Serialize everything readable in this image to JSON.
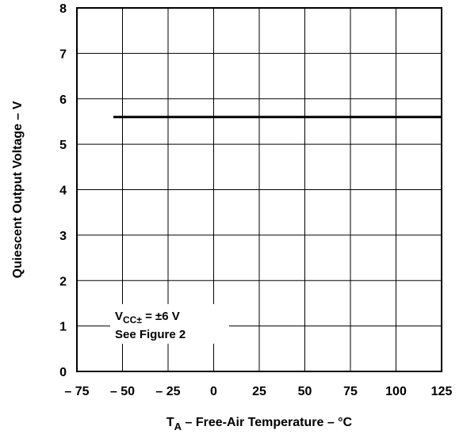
{
  "chart_data": {
    "type": "line",
    "title": "",
    "xlabel": {
      "sym": "T",
      "sub": "A",
      "rest": " – Free-Air Temperature – °C"
    },
    "ylabel": "Quiescent Output Voltage – V",
    "xlim": [
      -75,
      125
    ],
    "ylim": [
      0,
      8
    ],
    "x_ticks": [
      -75,
      -50,
      -25,
      0,
      25,
      50,
      75,
      100,
      125
    ],
    "x_tick_labels": [
      "– 75",
      "– 50",
      "– 25",
      "0",
      "25",
      "50",
      "75",
      "100",
      "125"
    ],
    "y_ticks": [
      0,
      1,
      2,
      3,
      4,
      5,
      6,
      7,
      8
    ],
    "y_tick_labels": [
      "0",
      "1",
      "2",
      "3",
      "4",
      "5",
      "6",
      "7",
      "8"
    ],
    "grid": true,
    "series": [
      {
        "x": [
          -55,
          125
        ],
        "y": [
          5.6,
          5.6
        ]
      }
    ],
    "annotation": {
      "line1": {
        "v": "V",
        "sub": "CC±",
        "rest": " = ±6 V"
      },
      "line2": "See Figure 2"
    }
  }
}
